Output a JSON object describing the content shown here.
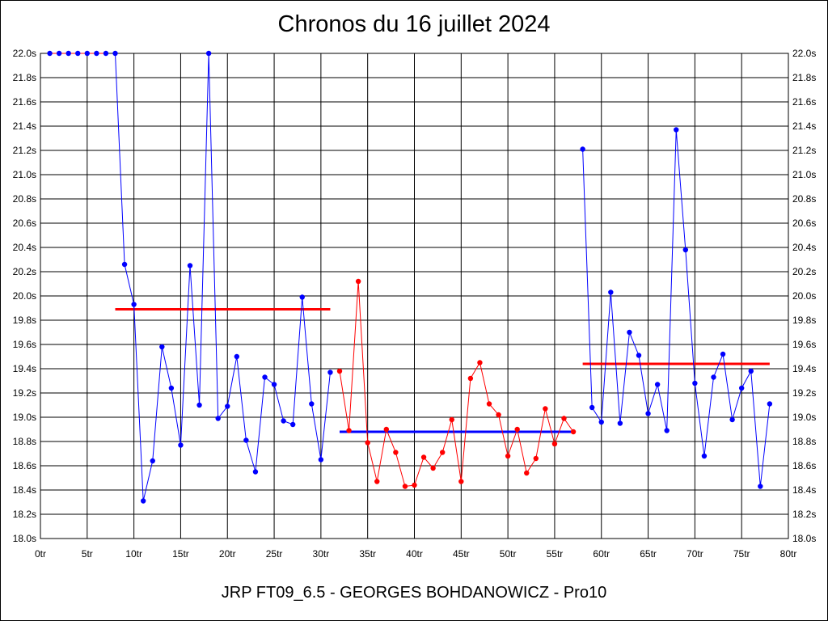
{
  "title": "Chronos du 16 juillet 2024",
  "caption": "JRP FT09_6.5 - GEORGES BOHDANOWICZ - Pro10",
  "chart_data": {
    "type": "line",
    "grid": true,
    "xlim": [
      0,
      80
    ],
    "ylim": [
      18.0,
      22.0
    ],
    "x_ticks": [
      "0tr",
      "5tr",
      "10tr",
      "15tr",
      "20tr",
      "25tr",
      "30tr",
      "35tr",
      "40tr",
      "45tr",
      "50tr",
      "55tr",
      "60tr",
      "65tr",
      "70tr",
      "75tr",
      "80tr"
    ],
    "y_ticks": [
      "18.0s",
      "18.2s",
      "18.4s",
      "18.6s",
      "18.8s",
      "19.0s",
      "19.2s",
      "19.4s",
      "19.6s",
      "19.8s",
      "20.0s",
      "20.2s",
      "20.4s",
      "20.6s",
      "20.8s",
      "21.0s",
      "21.2s",
      "21.4s",
      "21.6s",
      "21.8s",
      "22.0s"
    ],
    "series": [
      {
        "color": "#ff0000",
        "marker_color": "#0000ff",
        "x": [
          1,
          2,
          3,
          4,
          5,
          6,
          7
        ],
        "y": [
          22.0,
          22.0,
          22.0,
          22.0,
          22.0,
          22.0,
          22.0
        ]
      },
      {
        "color": "#0000ff",
        "x": [
          8,
          9,
          10,
          11,
          12,
          13,
          14,
          15,
          16,
          17,
          18,
          19,
          20,
          21,
          22,
          23,
          24,
          25,
          26,
          27,
          28,
          29,
          30,
          31
        ],
        "y": [
          22.0,
          20.26,
          19.93,
          18.31,
          18.64,
          19.58,
          19.24,
          18.77,
          20.25,
          19.1,
          22.0,
          18.99,
          19.09,
          19.5,
          18.81,
          18.55,
          19.33,
          19.27,
          18.97,
          18.94,
          19.99,
          19.11,
          18.65,
          19.37
        ]
      },
      {
        "color": "#ff0000",
        "x": [
          32,
          33,
          34,
          35,
          36,
          37,
          38,
          39,
          40,
          41,
          42,
          43,
          44,
          45,
          46,
          47,
          48,
          49,
          50,
          51,
          52,
          53,
          54,
          55,
          56,
          57
        ],
        "y": [
          19.38,
          18.89,
          20.12,
          18.79,
          18.47,
          18.9,
          18.71,
          18.43,
          18.44,
          18.67,
          18.58,
          18.71,
          18.98,
          18.47,
          19.32,
          19.45,
          19.11,
          19.02,
          18.68,
          18.9,
          18.54,
          18.66,
          19.07,
          18.78,
          18.99,
          18.88
        ]
      },
      {
        "color": "#0000ff",
        "x": [
          58,
          59,
          60,
          61,
          62,
          63,
          64,
          65,
          66,
          67,
          68,
          69,
          70,
          71,
          72,
          73,
          74,
          75,
          76,
          77,
          78
        ],
        "y": [
          21.21,
          19.08,
          18.96,
          20.03,
          18.95,
          19.7,
          19.51,
          19.03,
          19.27,
          18.89,
          21.37,
          20.38,
          19.28,
          18.68,
          19.33,
          19.52,
          18.98,
          19.24,
          19.38,
          18.43,
          19.11
        ]
      }
    ],
    "average_lines": [
      {
        "color": "#ff0000",
        "x": [
          8,
          31
        ],
        "y": 19.89
      },
      {
        "color": "#0000ff",
        "x": [
          32,
          57
        ],
        "y": 18.88
      },
      {
        "color": "#ff0000",
        "x": [
          58,
          78
        ],
        "y": 19.44
      }
    ]
  }
}
